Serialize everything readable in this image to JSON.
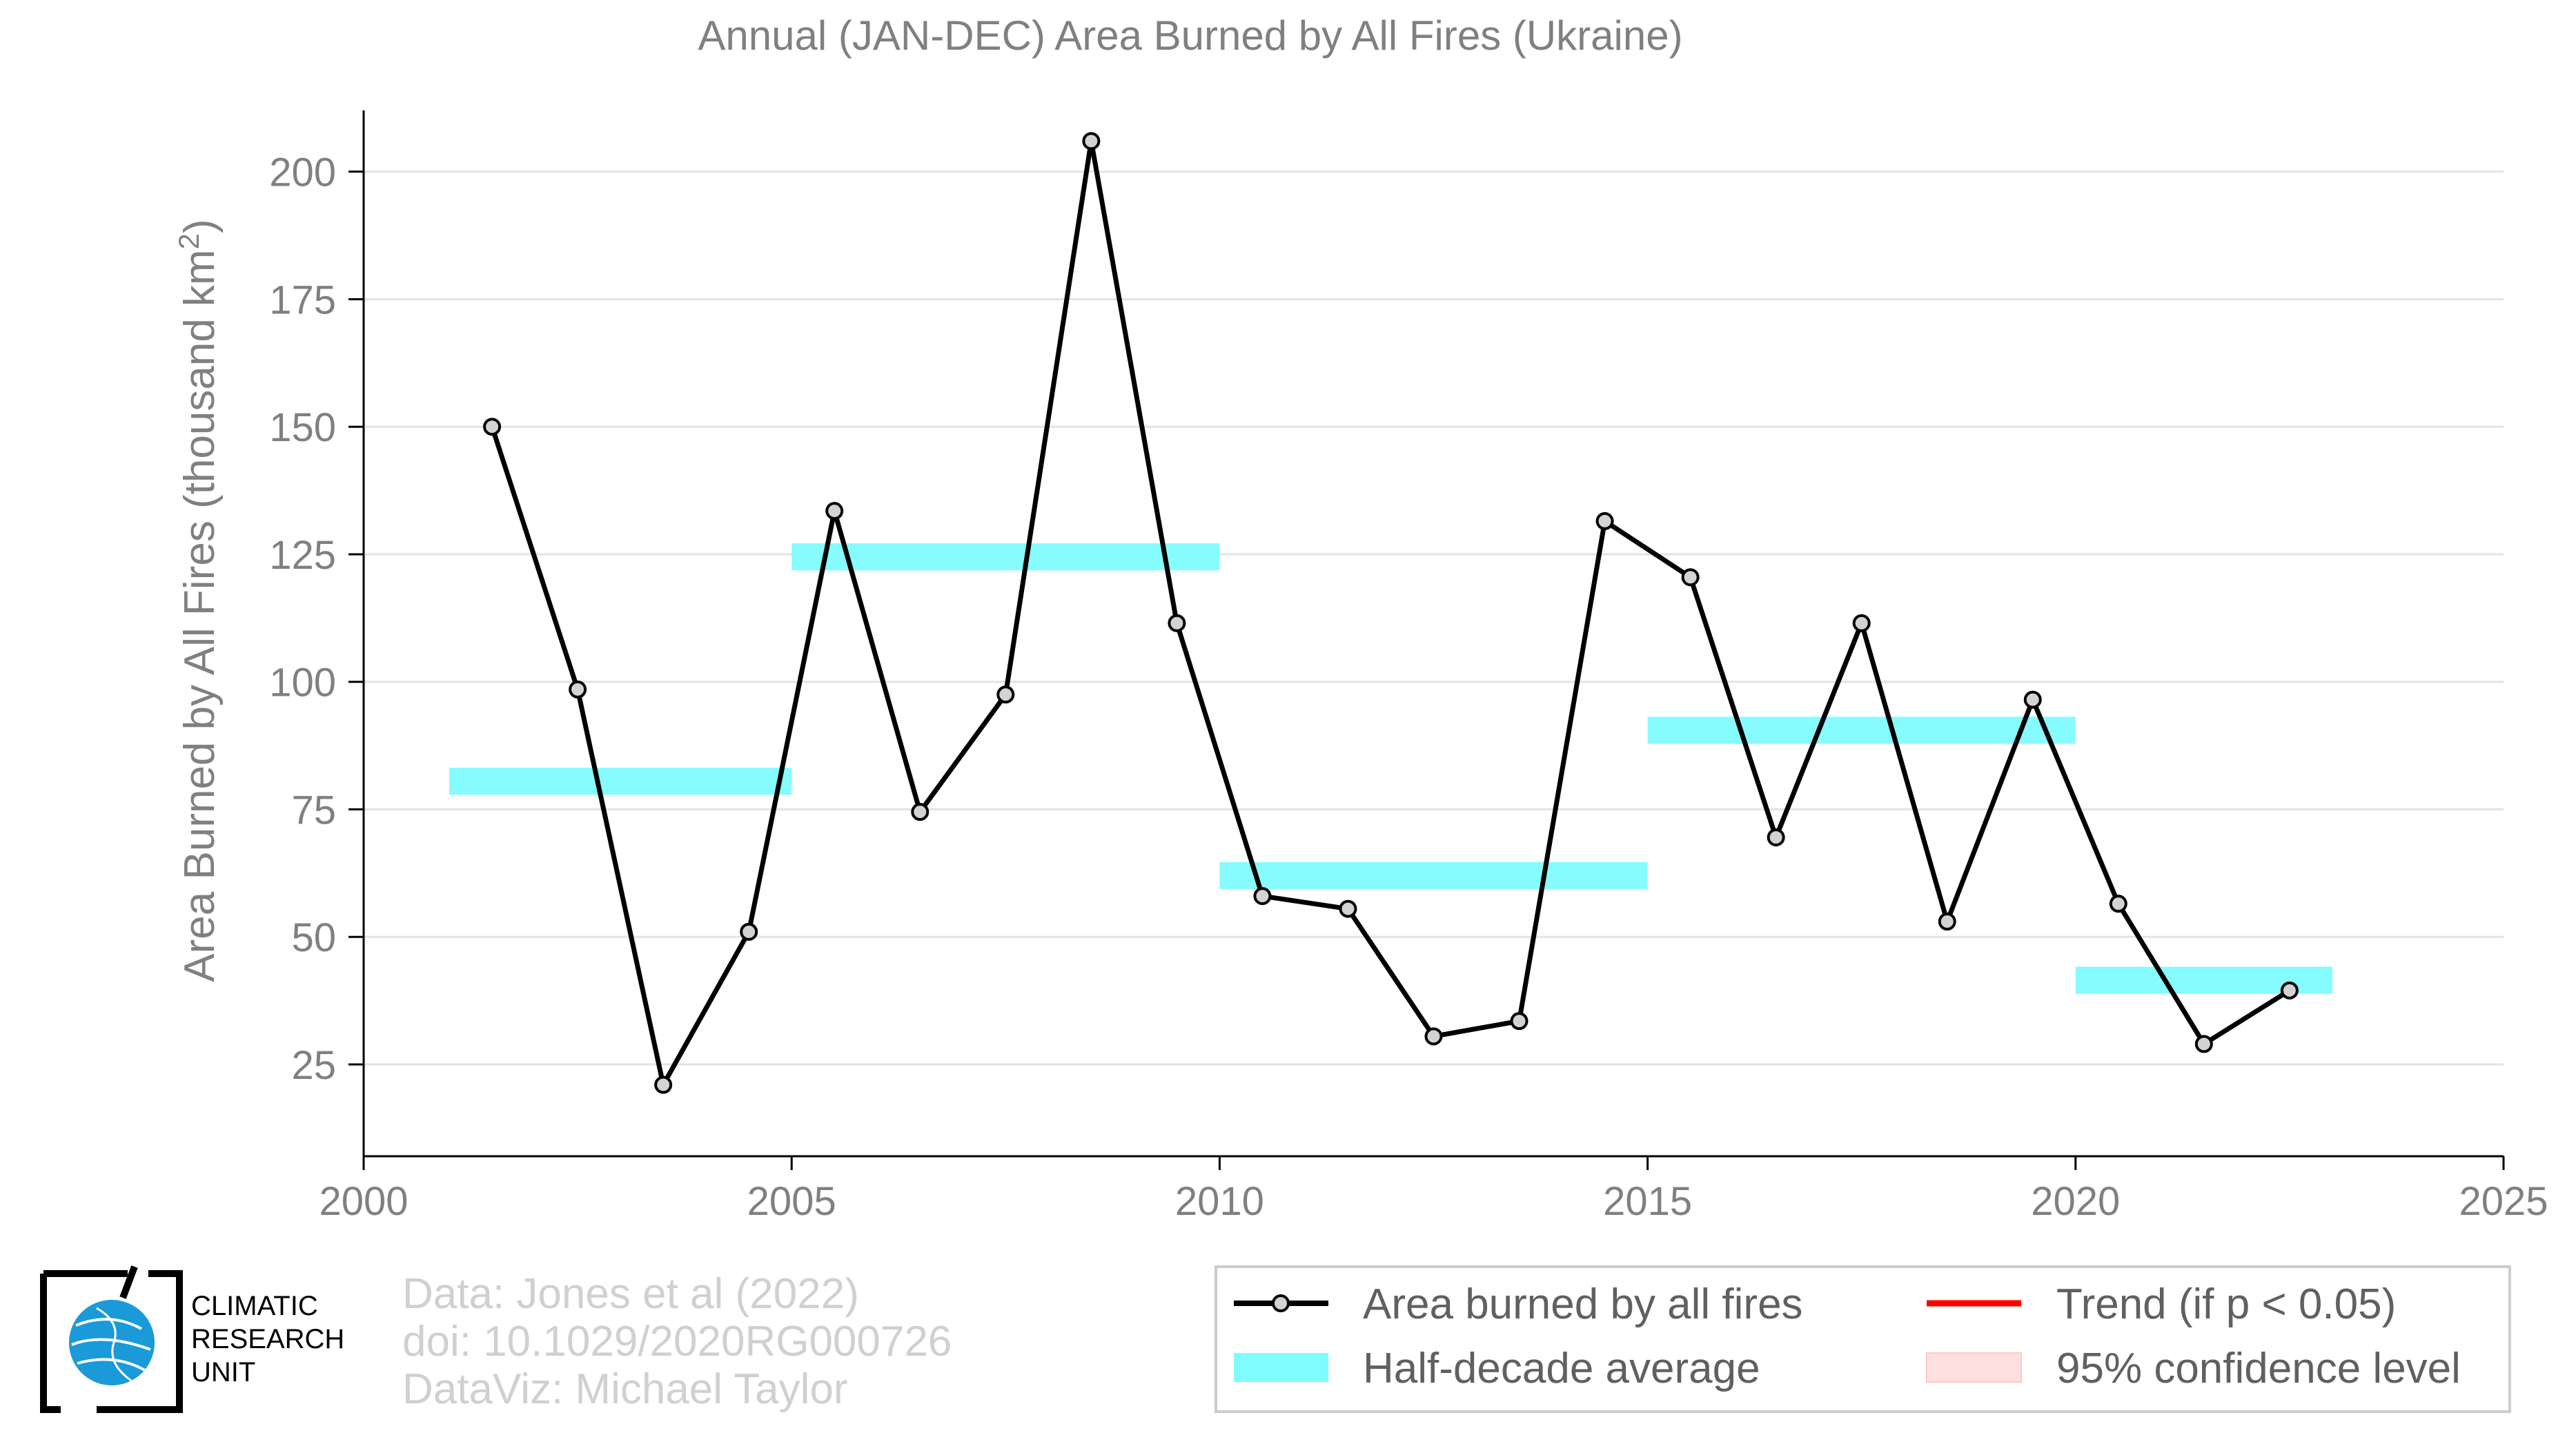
{
  "chart_data": {
    "type": "line",
    "title": "Annual (JAN-DEC) Area Burned by All Fires (Ukraine)",
    "ylabel": "Area Burned by All Fires (thousand km",
    "ylabel_superscript": "2",
    "ylabel_close": ")",
    "xlim": [
      2000,
      2025
    ],
    "ylim": [
      7,
      212
    ],
    "x_ticks": [
      2000,
      2005,
      2010,
      2015,
      2020,
      2025
    ],
    "y_ticks": [
      25,
      50,
      75,
      100,
      125,
      150,
      175,
      200
    ],
    "grid": "horizontal",
    "series": [
      {
        "name": "Area burned by all fires",
        "color": "#000000",
        "marker_color": "#d3d3d3",
        "x": [
          2001.5,
          2002.5,
          2003.5,
          2004.5,
          2005.5,
          2006.5,
          2007.5,
          2008.5,
          2009.5,
          2010.5,
          2011.5,
          2012.5,
          2013.5,
          2014.5,
          2015.5,
          2016.5,
          2017.5,
          2018.5,
          2019.5,
          2020.5,
          2021.5,
          2022.5
        ],
        "values": [
          150,
          98.5,
          21,
          51,
          133.5,
          74.5,
          97.5,
          206,
          111.5,
          58,
          55.5,
          30.5,
          33.5,
          131.5,
          120.5,
          69.5,
          111.5,
          53,
          96.5,
          56.5,
          29,
          39.5
        ]
      },
      {
        "name": "Half-decade average",
        "color": "#7ffcff",
        "segments": [
          {
            "x0": 2001,
            "x1": 2005,
            "value": 80.5
          },
          {
            "x0": 2005,
            "x1": 2010,
            "value": 124.5
          },
          {
            "x0": 2010,
            "x1": 2015,
            "value": 62
          },
          {
            "x0": 2015,
            "x1": 2020,
            "value": 90.5
          },
          {
            "x0": 2020,
            "x1": 2023,
            "value": 41.5
          }
        ]
      }
    ],
    "legend": {
      "placement": "bottom-right",
      "entries": [
        {
          "label": "Area burned by all fires",
          "kind": "line-marker",
          "color": "#000000"
        },
        {
          "label": "Trend (if p < 0.05)",
          "kind": "line",
          "color": "#ff0000"
        },
        {
          "label": "Half-decade average",
          "kind": "band",
          "color": "#7ffcff"
        },
        {
          "label": "95% confidence level",
          "kind": "band",
          "color": "#ffe0e0"
        }
      ]
    }
  },
  "logo": {
    "line1": "CLIMATIC",
    "line2": "RESEARCH",
    "line3": "UNIT",
    "icon": "globe-icon",
    "globe_color": "#1a9ad8"
  },
  "credits": {
    "line1": "Data: Jones et al (2022)",
    "line2": "doi: 10.1029/2020RG000726",
    "line3": "DataViz: Michael Taylor"
  }
}
